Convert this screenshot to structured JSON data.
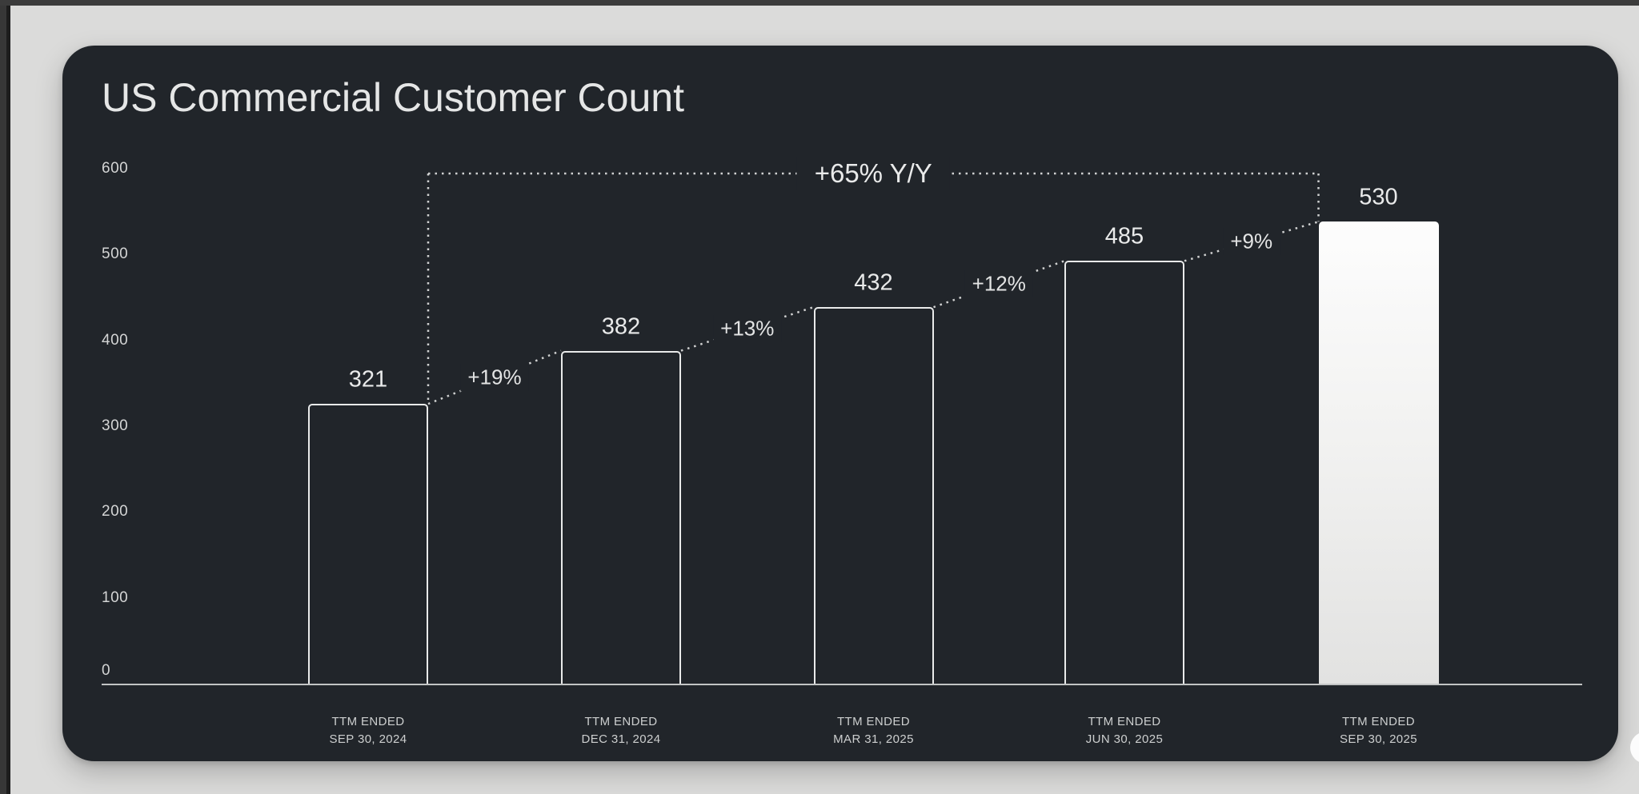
{
  "colors": {
    "page_background": "#dbdbda",
    "top_strip": "#3b3b3b",
    "card_background": "#21252a",
    "dotted_line": "#d0d1d1",
    "bar_outline": "#e9eaea",
    "highlight_bar_top": "#fdfdfd",
    "highlight_bar_bottom": "#e2e2e1",
    "axis_text": "#d4d5d5"
  },
  "chart_data": {
    "type": "bar",
    "title": "US Commercial Customer Count",
    "categories": [
      {
        "line1": "TTM ENDED",
        "line2": "SEP 30, 2024"
      },
      {
        "line1": "TTM ENDED",
        "line2": "DEC 31, 2024"
      },
      {
        "line1": "TTM ENDED",
        "line2": "MAR 31, 2025"
      },
      {
        "line1": "TTM ENDED",
        "line2": "JUN 30, 2025"
      },
      {
        "line1": "TTM ENDED",
        "line2": "SEP 30, 2025"
      }
    ],
    "values": [
      321,
      382,
      432,
      485,
      530
    ],
    "value_labels": [
      "321",
      "382",
      "432",
      "485",
      "530"
    ],
    "growth_labels": [
      "+19%",
      "+13%",
      "+12%",
      "+9%"
    ],
    "yoy_label": "+65% Y/Y",
    "yticks": [
      0,
      100,
      200,
      300,
      400,
      500,
      600
    ],
    "ylim": [
      0,
      600
    ],
    "xlabel": "",
    "ylabel": "",
    "grid": false,
    "legend": false,
    "highlighted_bar_index": 4
  }
}
